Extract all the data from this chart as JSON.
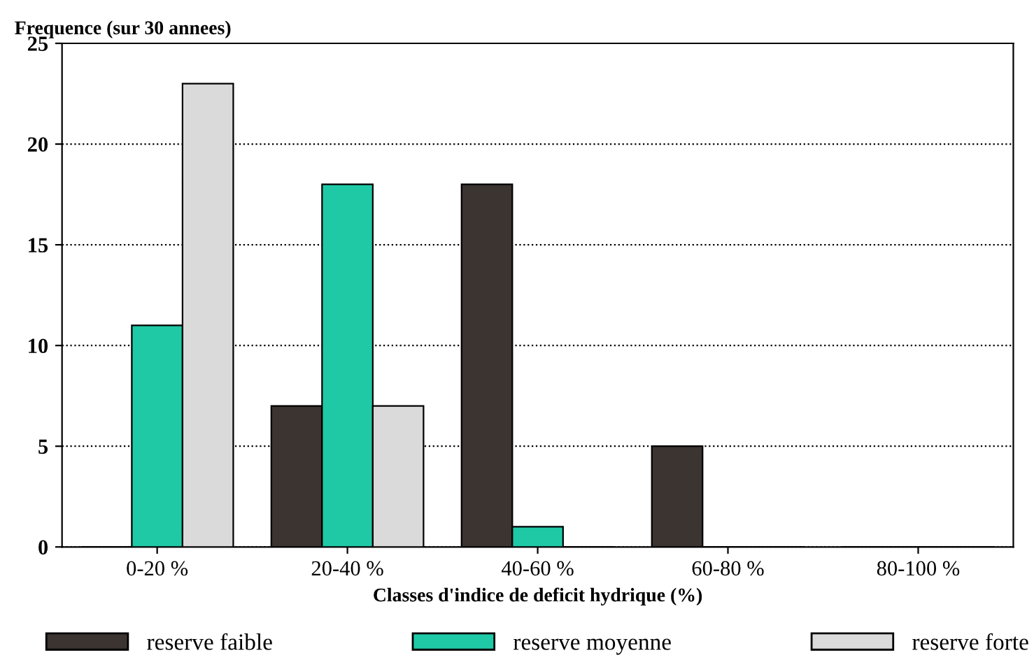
{
  "chart_data": {
    "type": "bar",
    "ylabel": "Frequence (sur 30 annees)",
    "xlabel": "Classes d'indice de deficit hydrique (%)",
    "categories": [
      "0-20 %",
      "20-40 %",
      "40-60 %",
      "60-80 %",
      "80-100 %"
    ],
    "series": [
      {
        "name": "reserve faible",
        "color": "#3b3431",
        "values": [
          0,
          7,
          18,
          5,
          0
        ]
      },
      {
        "name": "reserve moyenne",
        "color": "#1fc9a6",
        "values": [
          11,
          18,
          1,
          0,
          0
        ]
      },
      {
        "name": "reserve forte",
        "color": "#dadada",
        "values": [
          23,
          7,
          0,
          0,
          0
        ]
      }
    ],
    "ylim": [
      0,
      25
    ],
    "yticks": [
      0,
      5,
      10,
      15,
      20,
      25
    ],
    "grid": "y",
    "legend": "bottom"
  }
}
